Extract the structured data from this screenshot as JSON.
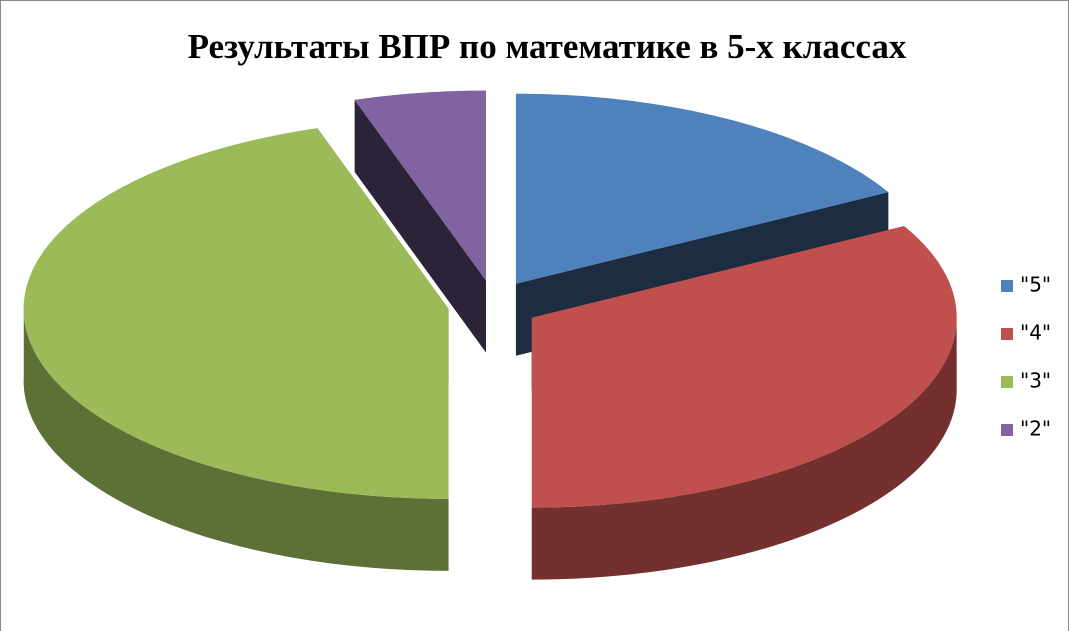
{
  "chart_data": {
    "type": "pie3d",
    "title": "Результаты ВПР по математике в 5-х классах",
    "categories": [
      "\"5\"",
      "\"4\"",
      "\"3\"",
      "\"2\""
    ],
    "values": [
      17,
      33,
      45,
      5
    ],
    "colors": [
      "#4f81bd",
      "#c0504d",
      "#9bbb59",
      "#8064a2"
    ],
    "legend": "right"
  }
}
